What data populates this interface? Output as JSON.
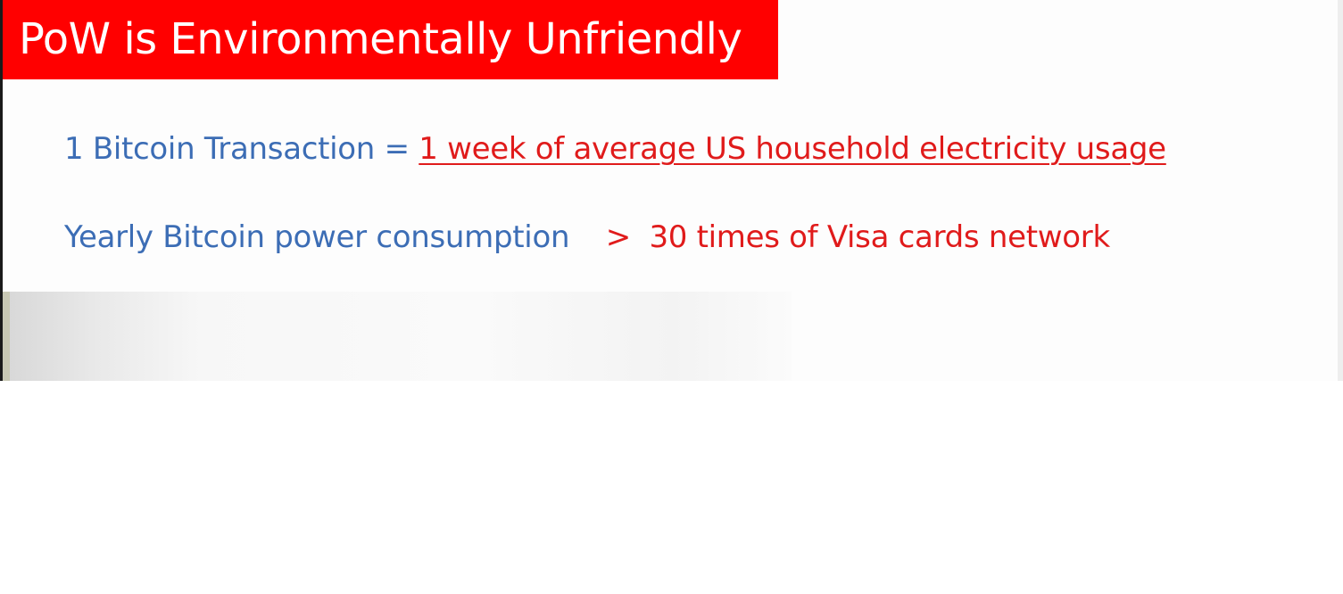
{
  "slide": {
    "title": "PoW is Environmentally Unfriendly",
    "line1": {
      "left_text": "1 Bitcoin Transaction",
      "operator": "=",
      "right_text": "1 week of average US household electricity usage"
    },
    "line2": {
      "left_text": "Yearly Bitcoin power consumption",
      "operator": ">",
      "right_text": "30 times of Visa cards network"
    }
  },
  "colors": {
    "title_background": "#ff0000",
    "title_text": "#ffffff",
    "blue_text": "#3c6db5",
    "red_text": "#e01b1b"
  }
}
